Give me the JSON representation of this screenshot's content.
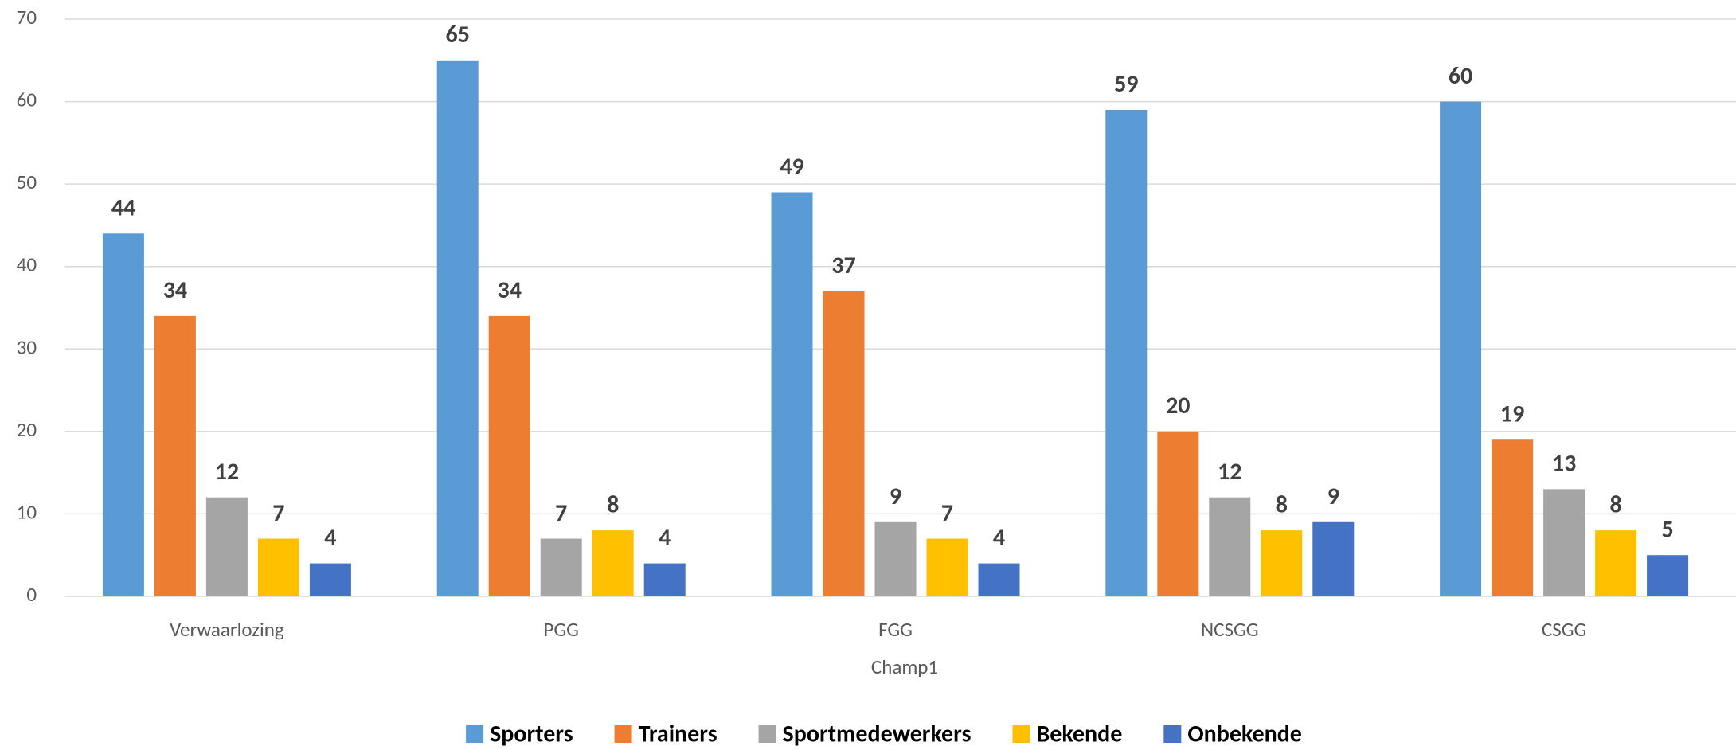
{
  "chart_data": {
    "type": "bar",
    "x_label": "Champ1",
    "categories": [
      "Verwaarlozing",
      "PGG",
      "FGG",
      "NCSGG",
      "CSGG"
    ],
    "series": [
      {
        "name": "Sporters",
        "color": "#5b9bd5",
        "values": [
          44,
          65,
          49,
          59,
          60
        ]
      },
      {
        "name": "Trainers",
        "color": "#ed7d31",
        "values": [
          34,
          34,
          37,
          20,
          19
        ]
      },
      {
        "name": "Sportmedewerkers",
        "color": "#a5a5a5",
        "values": [
          12,
          7,
          9,
          12,
          13
        ]
      },
      {
        "name": "Bekende",
        "color": "#ffc000",
        "values": [
          7,
          8,
          7,
          8,
          8
        ]
      },
      {
        "name": "Onbekende",
        "color": "#4472c4",
        "values": [
          4,
          4,
          4,
          9,
          5
        ]
      }
    ],
    "ylim": [
      0,
      70
    ],
    "yticks": [
      0,
      10,
      20,
      30,
      40,
      50,
      60,
      70
    ],
    "grid": true,
    "legend": "bottom"
  }
}
